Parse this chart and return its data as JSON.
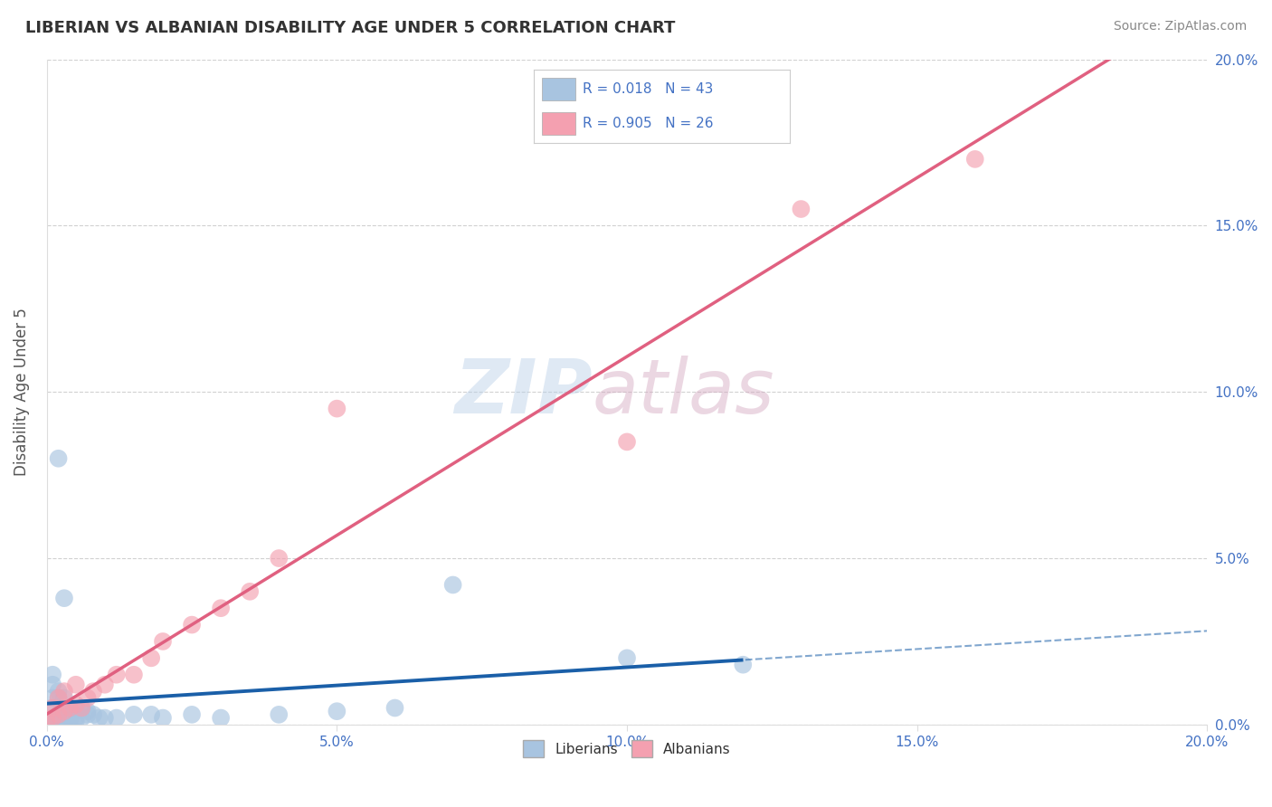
{
  "title": "LIBERIAN VS ALBANIAN DISABILITY AGE UNDER 5 CORRELATION CHART",
  "source": "Source: ZipAtlas.com",
  "ylabel": "Disability Age Under 5",
  "xlim": [
    0.0,
    0.2
  ],
  "ylim": [
    0.0,
    0.2
  ],
  "liberian_color": "#a8c4e0",
  "albanian_color": "#f4a0b0",
  "liberian_line_color": "#1a5fa8",
  "albanian_line_color": "#e06080",
  "R_liberian": 0.018,
  "N_liberian": 43,
  "R_albanian": 0.905,
  "N_albanian": 26,
  "watermark": "ZIPatlas",
  "watermark_color_zip": "#c8d8ee",
  "watermark_color_atlas": "#d0b8c8",
  "tick_color": "#4472c4",
  "grid_color": "#cccccc",
  "liberian_scatter_x": [
    0.0,
    0.001,
    0.001,
    0.001,
    0.001,
    0.001,
    0.001,
    0.002,
    0.002,
    0.002,
    0.002,
    0.003,
    0.003,
    0.003,
    0.003,
    0.004,
    0.004,
    0.004,
    0.004,
    0.005,
    0.005,
    0.005,
    0.006,
    0.006,
    0.007,
    0.007,
    0.008,
    0.009,
    0.01,
    0.012,
    0.015,
    0.018,
    0.02,
    0.025,
    0.03,
    0.04,
    0.05,
    0.06,
    0.07,
    0.1,
    0.12,
    0.003,
    0.002
  ],
  "liberian_scatter_y": [
    0.001,
    0.002,
    0.005,
    0.008,
    0.012,
    0.015,
    0.001,
    0.003,
    0.008,
    0.01,
    0.001,
    0.002,
    0.004,
    0.008,
    0.001,
    0.002,
    0.003,
    0.005,
    0.001,
    0.002,
    0.004,
    0.001,
    0.002,
    0.005,
    0.003,
    0.004,
    0.003,
    0.002,
    0.002,
    0.002,
    0.003,
    0.003,
    0.002,
    0.003,
    0.002,
    0.003,
    0.004,
    0.005,
    0.042,
    0.02,
    0.018,
    0.038,
    0.08
  ],
  "albanian_scatter_x": [
    0.0,
    0.001,
    0.001,
    0.002,
    0.002,
    0.003,
    0.003,
    0.004,
    0.005,
    0.005,
    0.006,
    0.007,
    0.008,
    0.01,
    0.012,
    0.015,
    0.018,
    0.02,
    0.025,
    0.03,
    0.035,
    0.04,
    0.05,
    0.1,
    0.13,
    0.16
  ],
  "albanian_scatter_y": [
    0.001,
    0.002,
    0.005,
    0.003,
    0.008,
    0.004,
    0.01,
    0.005,
    0.006,
    0.012,
    0.005,
    0.008,
    0.01,
    0.012,
    0.015,
    0.015,
    0.02,
    0.025,
    0.03,
    0.035,
    0.04,
    0.05,
    0.095,
    0.085,
    0.155,
    0.17
  ]
}
